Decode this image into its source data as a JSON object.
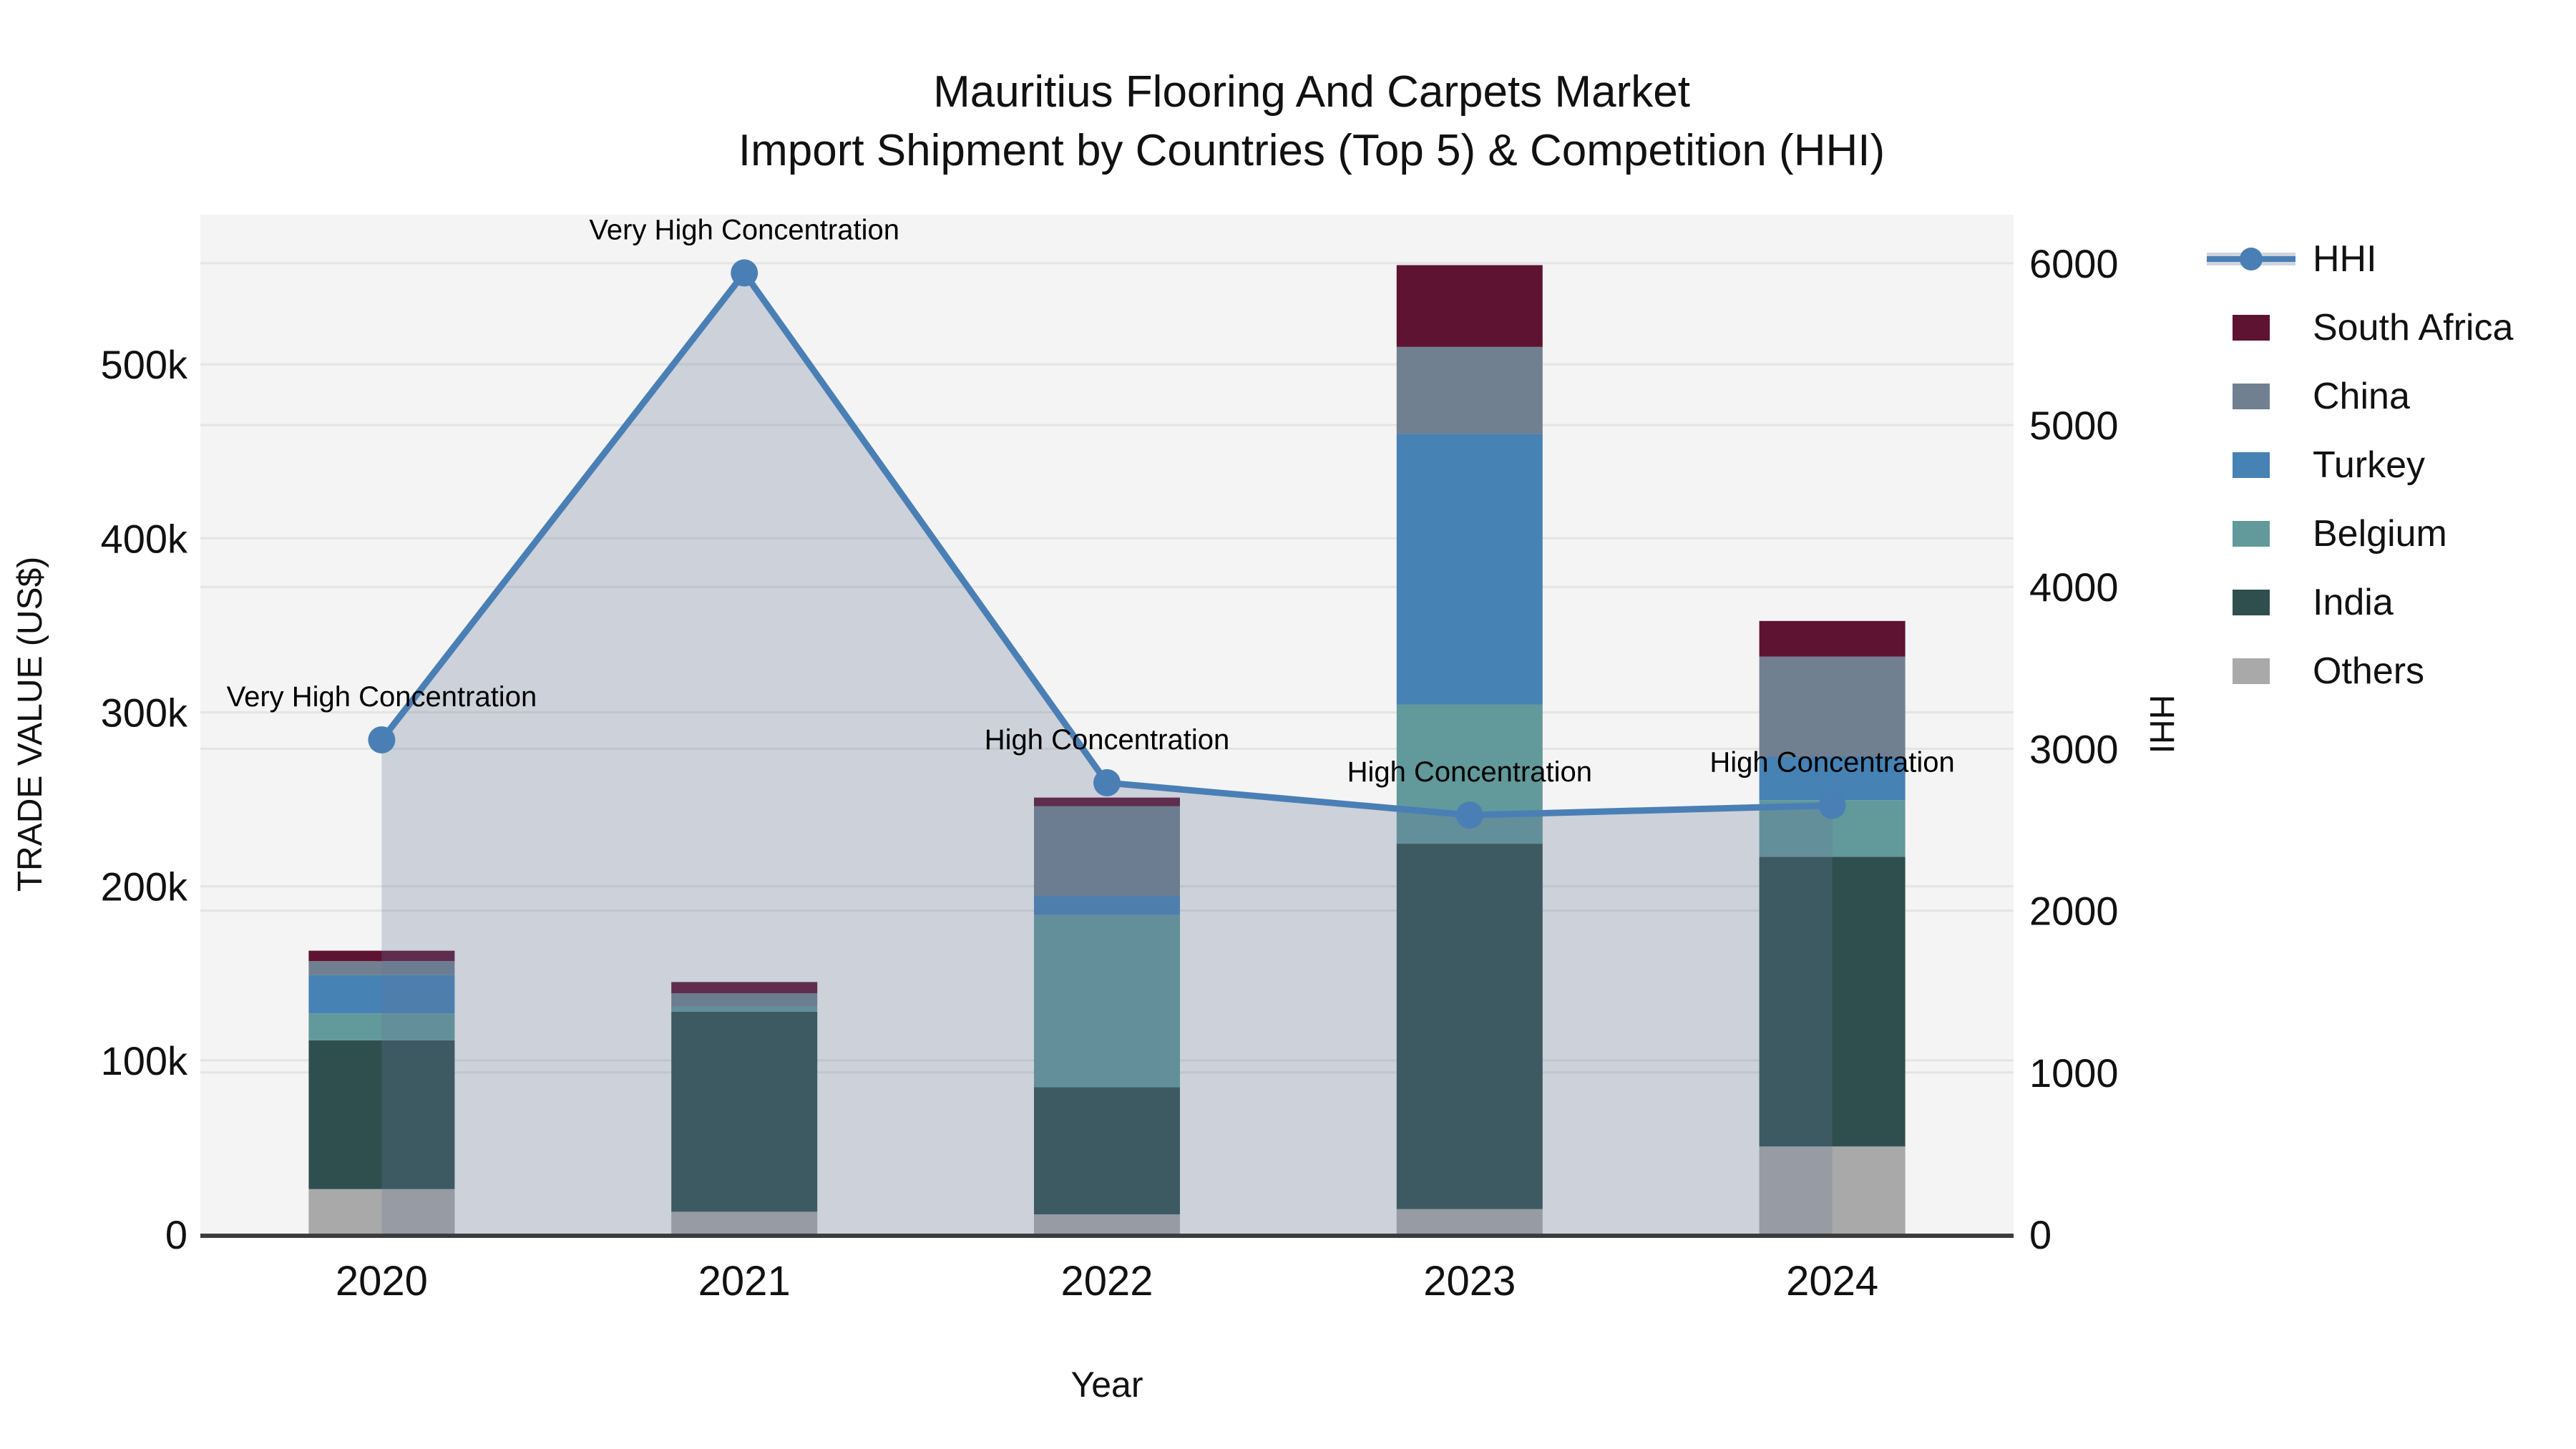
{
  "title": {
    "line1": "Mauritius Flooring And Carpets Market",
    "line2": "Import Shipment by Countries (Top 5) & Competition (HHI)"
  },
  "axes": {
    "x_title": "Year",
    "y_left_title": "TRADE VALUE (US$)",
    "y_right_title": "HHI",
    "y_left_tick_labels": [
      "0",
      "100k",
      "200k",
      "300k",
      "400k",
      "500k"
    ],
    "y_right_tick_labels": [
      "0",
      "1000",
      "2000",
      "3000",
      "4000",
      "5000",
      "6000"
    ]
  },
  "colors": {
    "south_africa": "#5e1332",
    "china": "#708090",
    "turkey": "#4682b4",
    "belgium": "#62999b",
    "india": "#2f4f4f",
    "others": "#a9a9a9",
    "hhi_line": "#4a7fb5",
    "hhi_area_fill": "rgba(100,120,150,0.28)",
    "plot_background": "#f4f4f4",
    "gridline": "#e4e4e4",
    "axis_line": "#3c3c3c",
    "text": "#111111"
  },
  "legend": [
    {
      "label": "HHI",
      "type": "line",
      "color": "#4a7fb5"
    },
    {
      "label": "South Africa",
      "type": "swatch",
      "color": "#5e1332"
    },
    {
      "label": "China",
      "type": "swatch",
      "color": "#708090"
    },
    {
      "label": "Turkey",
      "type": "swatch",
      "color": "#4682b4"
    },
    {
      "label": "Belgium",
      "type": "swatch",
      "color": "#62999b"
    },
    {
      "label": "India",
      "type": "swatch",
      "color": "#2f4f4f"
    },
    {
      "label": "Others",
      "type": "swatch",
      "color": "#a9a9a9"
    }
  ],
  "chart_data": {
    "type": "combo-stacked-bar-and-line",
    "title": "Mauritius Flooring And Carpets Market — Import Shipment by Countries (Top 5) & Competition (HHI)",
    "xlabel": "Year",
    "ylabel_left": "TRADE VALUE (US$)",
    "ylabel_right": "HHI",
    "categories": [
      "2020",
      "2021",
      "2022",
      "2023",
      "2024"
    ],
    "y_left_ticks": [
      0,
      100000,
      200000,
      300000,
      400000,
      500000
    ],
    "y_left_lim": [
      0,
      586000
    ],
    "y_right_ticks": [
      0,
      1000,
      2000,
      3000,
      4000,
      5000,
      6000
    ],
    "y_right_lim": [
      0,
      6300
    ],
    "grid": true,
    "legend_position": "right",
    "bar_series_stack_order_bottom_to_top": [
      {
        "name": "Others",
        "color": "#a9a9a9",
        "values": [
          26000,
          13000,
          11500,
          14500,
          50500
        ]
      },
      {
        "name": "India",
        "color": "#2f4f4f",
        "values": [
          85500,
          115000,
          73000,
          210000,
          166500
        ]
      },
      {
        "name": "Belgium",
        "color": "#62999b",
        "values": [
          15500,
          3000,
          99000,
          80000,
          32500
        ]
      },
      {
        "name": "Turkey",
        "color": "#4682b4",
        "values": [
          22000,
          0,
          11000,
          155500,
          25000
        ]
      },
      {
        "name": "China",
        "color": "#708090",
        "values": [
          8000,
          7500,
          51500,
          50000,
          57500
        ]
      },
      {
        "name": "South Africa",
        "color": "#5e1332",
        "values": [
          6000,
          6500,
          5000,
          47000,
          20500
        ]
      }
    ],
    "bar_totals": [
      163000,
      145000,
      251000,
      557000,
      352500
    ],
    "line_series": {
      "name": "HHI",
      "axis": "right",
      "values": [
        3055,
        5940,
        2790,
        2590,
        2650
      ],
      "color": "#4a7fb5",
      "area_fill": "rgba(100,120,150,0.28)"
    },
    "annotations": [
      {
        "category": "2020",
        "text": "Very High Concentration"
      },
      {
        "category": "2021",
        "text": "Very High Concentration"
      },
      {
        "category": "2022",
        "text": "High Concentration"
      },
      {
        "category": "2023",
        "text": "High Concentration"
      },
      {
        "category": "2024",
        "text": "High Concentration"
      }
    ]
  }
}
